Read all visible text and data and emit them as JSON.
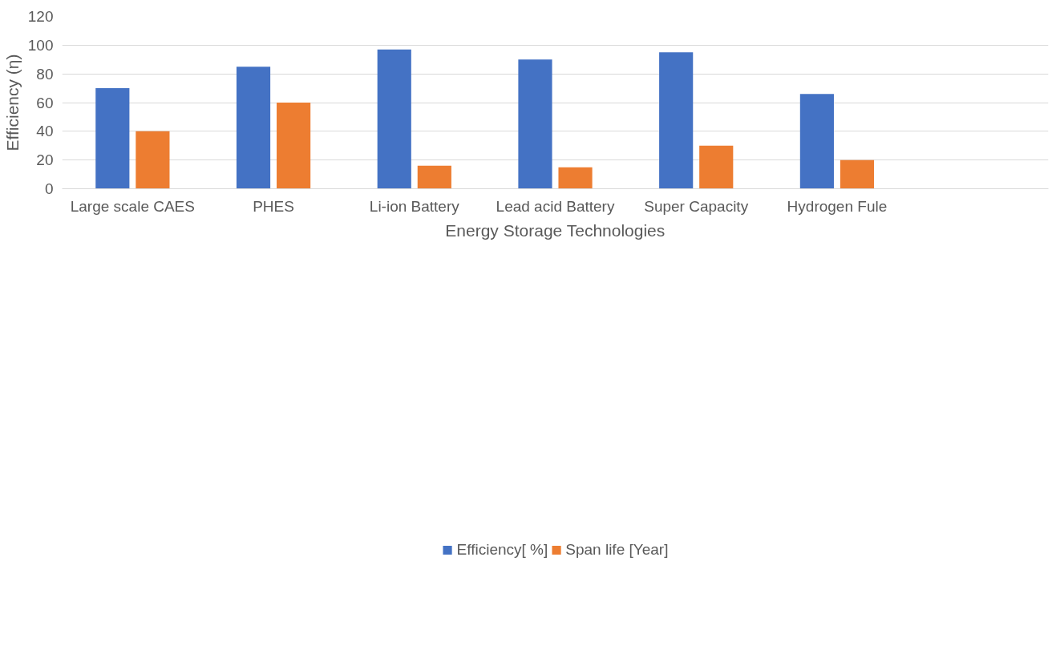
{
  "chart_data": {
    "type": "bar",
    "xlabel": "Energy Storage Technologies",
    "ylabel": "Efficiency (η)",
    "categories": [
      "Large scale CAES",
      "PHES",
      "Li-ion Battery",
      "Lead acid Battery",
      "Super Capacity",
      "Hydrogen Fule",
      null
    ],
    "series": [
      {
        "name": "Efficiency[ %]",
        "color": "#4472c4",
        "values": [
          70,
          85,
          97,
          90,
          95,
          66,
          null
        ]
      },
      {
        "name": "Span life [Year]",
        "color": "#ed7d31",
        "values": [
          40,
          60,
          16,
          15,
          30,
          20,
          null
        ]
      }
    ],
    "ylim": [
      0,
      120
    ],
    "yticks": [
      0,
      20,
      40,
      60,
      80,
      100,
      120
    ],
    "grid": "y",
    "legend": "bottom"
  }
}
